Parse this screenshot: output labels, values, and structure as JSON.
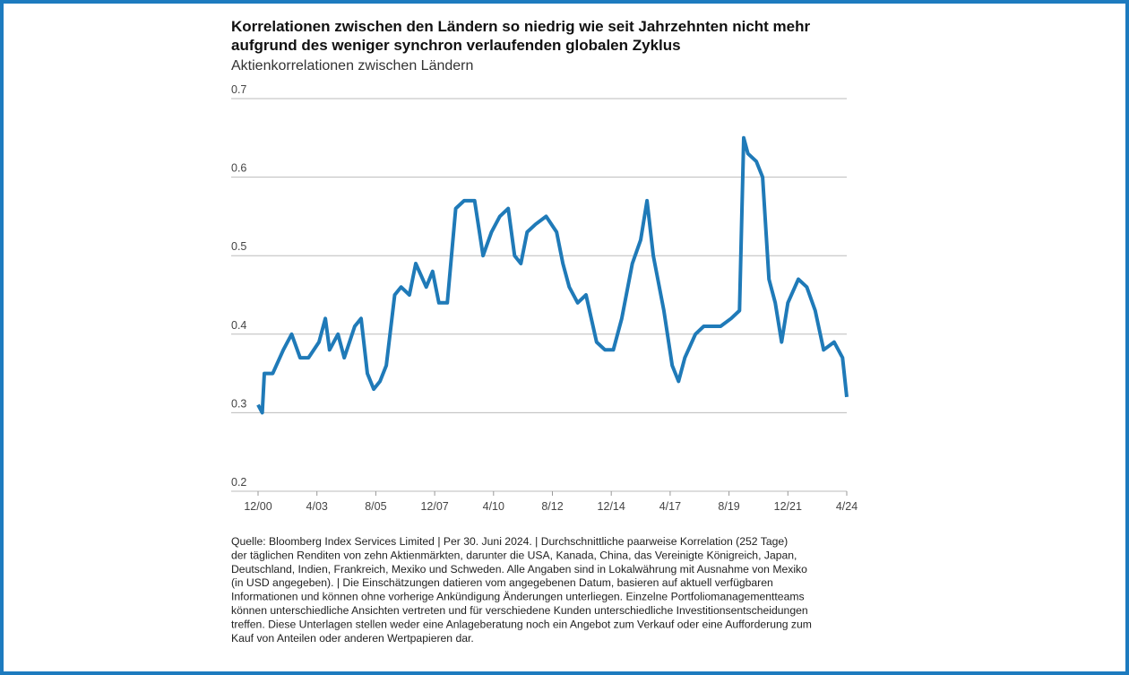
{
  "chart_data": {
    "type": "line",
    "title_lines": [
      "Korrelationen zwischen den Ländern so niedrig wie seit Jahrzehnten nicht mehr",
      "aufgrund des weniger synchron verlaufenden globalen Zyklus"
    ],
    "subtitle": "Aktienkorrelationen zwischen Ländern",
    "color": "#1f7ab8",
    "x": [
      "2000-12",
      "2001-02",
      "2001-03",
      "2001-07",
      "2001-12",
      "2002-04",
      "2002-08",
      "2002-12",
      "2003-05",
      "2003-08",
      "2003-10",
      "2004-02",
      "2004-05",
      "2004-10",
      "2005-01",
      "2005-04",
      "2005-07",
      "2005-10",
      "2006-01",
      "2006-05",
      "2006-08",
      "2006-12",
      "2007-03",
      "2007-08",
      "2007-11",
      "2008-02",
      "2008-06",
      "2008-10",
      "2009-02",
      "2009-07",
      "2009-11",
      "2010-03",
      "2010-07",
      "2010-11",
      "2011-02",
      "2011-05",
      "2011-08",
      "2011-12",
      "2012-05",
      "2012-10",
      "2013-01",
      "2013-04",
      "2013-08",
      "2013-12",
      "2014-05",
      "2014-09",
      "2015-01",
      "2015-05",
      "2015-10",
      "2016-02",
      "2016-05",
      "2016-08",
      "2017-01",
      "2017-05",
      "2017-08",
      "2017-11",
      "2018-04",
      "2018-08",
      "2018-12",
      "2019-04",
      "2019-09",
      "2020-01",
      "2020-03",
      "2020-05",
      "2020-09",
      "2020-12",
      "2021-03",
      "2021-06",
      "2021-09",
      "2021-12",
      "2022-05",
      "2022-09",
      "2023-01",
      "2023-05",
      "2023-10",
      "2024-02",
      "2024-04"
    ],
    "values": [
      0.31,
      0.3,
      0.35,
      0.35,
      0.38,
      0.4,
      0.37,
      0.37,
      0.39,
      0.42,
      0.38,
      0.4,
      0.37,
      0.41,
      0.42,
      0.35,
      0.33,
      0.34,
      0.36,
      0.45,
      0.46,
      0.45,
      0.49,
      0.46,
      0.48,
      0.44,
      0.44,
      0.56,
      0.57,
      0.57,
      0.5,
      0.53,
      0.55,
      0.56,
      0.5,
      0.49,
      0.53,
      0.54,
      0.55,
      0.53,
      0.49,
      0.46,
      0.44,
      0.45,
      0.39,
      0.38,
      0.38,
      0.42,
      0.49,
      0.52,
      0.57,
      0.5,
      0.43,
      0.36,
      0.34,
      0.37,
      0.4,
      0.41,
      0.41,
      0.41,
      0.42,
      0.43,
      0.65,
      0.63,
      0.62,
      0.6,
      0.47,
      0.44,
      0.39,
      0.44,
      0.47,
      0.46,
      0.43,
      0.38,
      0.39,
      0.37,
      0.32
    ],
    "xlim": [
      "2000-12",
      "2024-04"
    ],
    "xticks": [
      {
        "value": "2000-12",
        "label": "12/00"
      },
      {
        "value": "2003-04",
        "label": "4/03"
      },
      {
        "value": "2005-08",
        "label": "8/05"
      },
      {
        "value": "2007-12",
        "label": "12/07"
      },
      {
        "value": "2010-04",
        "label": "4/10"
      },
      {
        "value": "2012-08",
        "label": "8/12"
      },
      {
        "value": "2014-12",
        "label": "12/14"
      },
      {
        "value": "2017-04",
        "label": "4/17"
      },
      {
        "value": "2019-08",
        "label": "8/19"
      },
      {
        "value": "2021-12",
        "label": "12/21"
      },
      {
        "value": "2024-04",
        "label": "4/24"
      }
    ],
    "ylim": [
      0.2,
      0.7
    ],
    "yticks": [
      0.2,
      0.3,
      0.4,
      0.5,
      0.6,
      0.7
    ],
    "grid": true,
    "source_lines": [
      "Quelle: Bloomberg Index Services Limited  |  Per 30. Juni 2024.  |  Durchschnittliche paarweise Korrelation (252 Tage)",
      "der täglichen Renditen von zehn Aktienmärkten, darunter die USA, Kanada, China, das Vereinigte Königreich, Japan,",
      "Deutschland, Indien, Frankreich, Mexiko und Schweden. Alle Angaben sind in Lokalwährung mit Ausnahme von Mexiko",
      "(in USD angegeben).  |  Die Einschätzungen datieren vom angegebenen Datum, basieren auf aktuell verfügbaren",
      "Informationen und können ohne vorherige Ankündigung Änderungen unterliegen. Einzelne Portfoliomanagementteams",
      "können unterschiedliche Ansichten vertreten und für verschiedene Kunden unterschiedliche Investitionsentscheidungen",
      "treffen. Diese Unterlagen stellen weder eine Anlageberatung noch ein Angebot zum Verkauf oder eine Aufforderung zum",
      "Kauf von Anteilen oder anderen Wertpapieren dar."
    ]
  }
}
